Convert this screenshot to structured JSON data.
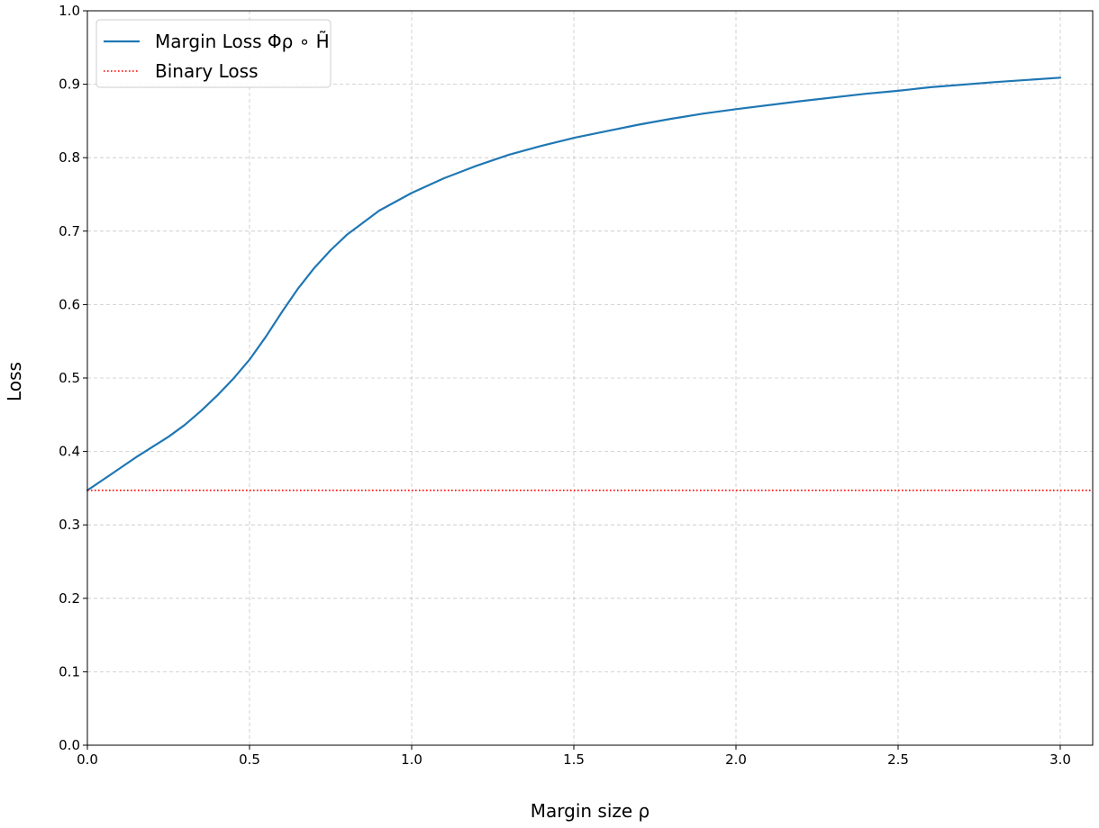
{
  "chart_data": {
    "type": "line",
    "title": "",
    "xlabel": "Margin size ρ",
    "ylabel": "Loss",
    "xlim": [
      0.0,
      3.1
    ],
    "ylim": [
      0.0,
      1.0
    ],
    "grid": true,
    "legend_position": "top-left",
    "xticks": [
      "0.0",
      "0.5",
      "1.0",
      "1.5",
      "2.0",
      "2.5",
      "3.0"
    ],
    "yticks": [
      "0.0",
      "0.1",
      "0.2",
      "0.3",
      "0.4",
      "0.5",
      "0.6",
      "0.7",
      "0.8",
      "0.9",
      "1.0"
    ],
    "series": [
      {
        "name": "Margin Loss Φρ ∘ H̃",
        "style": "solid",
        "color": "#1f77b4",
        "x": [
          0.0,
          0.05,
          0.1,
          0.15,
          0.2,
          0.25,
          0.3,
          0.35,
          0.4,
          0.45,
          0.5,
          0.55,
          0.6,
          0.65,
          0.7,
          0.75,
          0.8,
          0.9,
          1.0,
          1.1,
          1.2,
          1.3,
          1.4,
          1.5,
          1.6,
          1.7,
          1.8,
          1.9,
          2.0,
          2.2,
          2.4,
          2.5,
          2.6,
          2.8,
          3.0
        ],
        "y": [
          0.347,
          0.362,
          0.377,
          0.392,
          0.406,
          0.42,
          0.436,
          0.455,
          0.476,
          0.499,
          0.525,
          0.556,
          0.59,
          0.622,
          0.65,
          0.674,
          0.695,
          0.728,
          0.752,
          0.772,
          0.789,
          0.804,
          0.816,
          0.827,
          0.836,
          0.845,
          0.853,
          0.86,
          0.866,
          0.877,
          0.887,
          0.891,
          0.896,
          0.903,
          0.909
        ]
      },
      {
        "name": "Binary Loss",
        "style": "dotted",
        "color": "#ff0000",
        "x": [
          0.0,
          3.1
        ],
        "y": [
          0.347,
          0.347
        ]
      }
    ]
  }
}
